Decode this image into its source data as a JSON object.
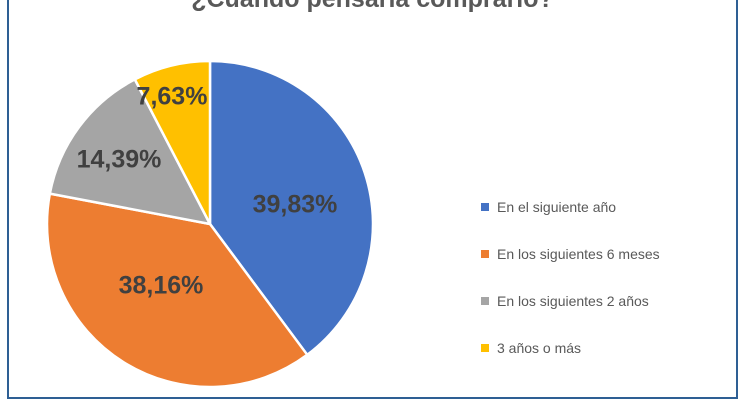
{
  "frame": {
    "border_color": "#2E5F94"
  },
  "chart_data": {
    "type": "pie",
    "title": "¿Cuándo pensaría comprarlo?",
    "title_color": "#595959",
    "label_color": "#404040",
    "legend_text_color": "#595959",
    "legend_position": "right",
    "start_angle_deg": 0,
    "direction": "clockwise",
    "slices": [
      {
        "label": "En el siguiente año",
        "value": 39.83,
        "display": "39,83%",
        "color": "#4472C4"
      },
      {
        "label": "En los siguientes 6 meses",
        "value": 38.16,
        "display": "38,16%",
        "color": "#ED7D31"
      },
      {
        "label": "En los siguientes 2 años",
        "value": 14.39,
        "display": "14,39%",
        "color": "#A5A5A5"
      },
      {
        "label": "3 años o más",
        "value": 7.63,
        "display": "7,63%",
        "color": "#FFC000"
      }
    ]
  }
}
